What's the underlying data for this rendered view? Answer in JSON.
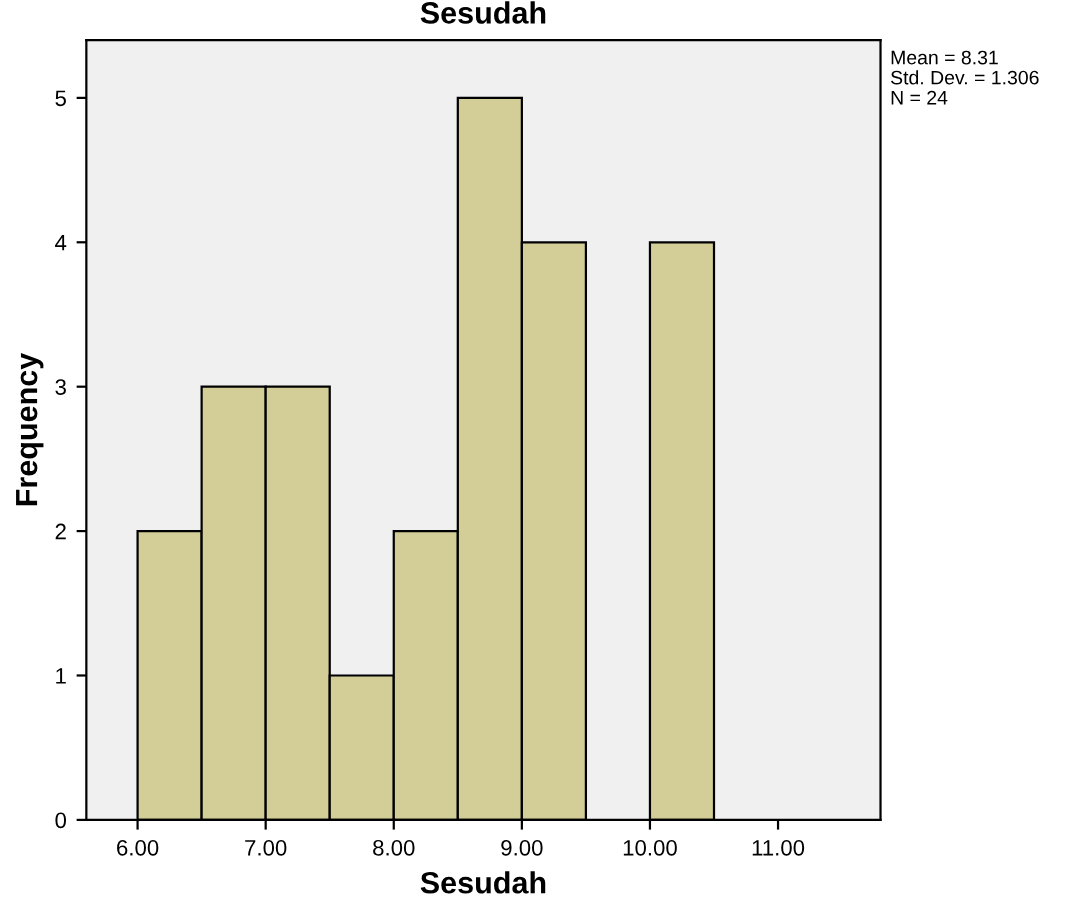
{
  "chart_data": {
    "type": "histogram",
    "title": "Sesudah",
    "xlabel": "Sesudah",
    "ylabel": "Frequency",
    "bins": [
      6.0,
      6.5,
      7.0,
      7.5,
      8.0,
      8.5,
      9.0,
      9.5,
      10.0,
      10.5,
      11.0
    ],
    "values": [
      2,
      3,
      3,
      1,
      2,
      5,
      4,
      0,
      4,
      0
    ],
    "color": "#d3ce97",
    "xlim": [
      5.6,
      11.8
    ],
    "ylim": [
      0,
      5.4
    ],
    "xticks": [
      {
        "value": 6,
        "label": "6.00"
      },
      {
        "value": 7,
        "label": "7.00"
      },
      {
        "value": 8,
        "label": "8.00"
      },
      {
        "value": 9,
        "label": "9.00"
      },
      {
        "value": 10,
        "label": "10.00"
      },
      {
        "value": 11,
        "label": "11.00"
      }
    ],
    "yticks": [
      0,
      1,
      2,
      3,
      4,
      5
    ],
    "annotations": [
      "Mean = 8.31",
      "Std. Dev. = 1.306",
      "N = 24"
    ],
    "grid": false,
    "legend": false
  }
}
